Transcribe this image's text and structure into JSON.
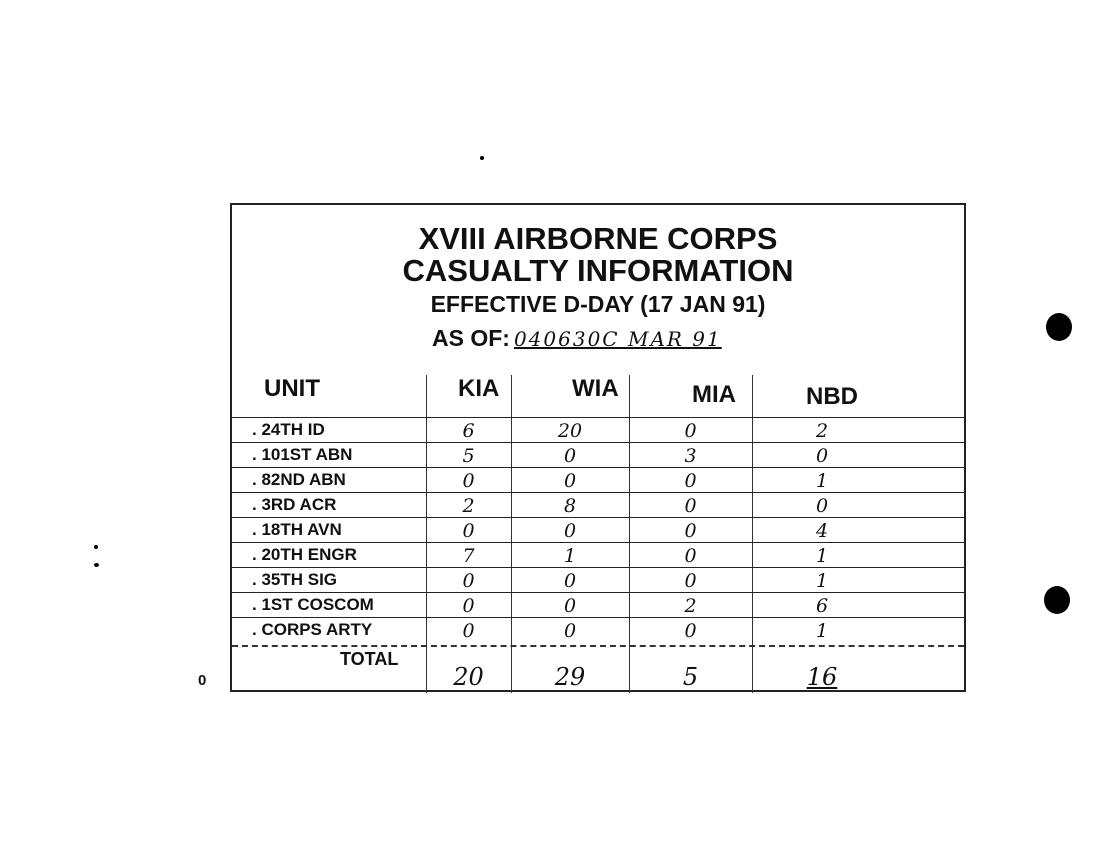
{
  "title_lines": [
    "XVIII AIRBORNE CORPS",
    "CASUALTY INFORMATION",
    "EFFECTIVE D-DAY (17 JAN 91)"
  ],
  "as_of_label": "AS OF:",
  "as_of_value": "040630C MAR 91",
  "columns": [
    "UNIT",
    "KIA",
    "WIA",
    "MIA",
    "NBD"
  ],
  "rows": [
    {
      "unit": ". 24TH ID",
      "kia": "6",
      "wia": "20",
      "mia": "0",
      "nbd": "2"
    },
    {
      "unit": ". 101ST ABN",
      "kia": "5",
      "wia": "0",
      "mia": "3",
      "nbd": "0"
    },
    {
      "unit": ". 82ND ABN",
      "kia": "0",
      "wia": "0",
      "mia": "0",
      "nbd": "1"
    },
    {
      "unit": ". 3RD ACR",
      "kia": "2",
      "wia": "8",
      "mia": "0",
      "nbd": "0"
    },
    {
      "unit": ". 18TH AVN",
      "kia": "0",
      "wia": "0",
      "mia": "0",
      "nbd": "4"
    },
    {
      "unit": ". 20TH ENGR",
      "kia": "7",
      "wia": "1",
      "mia": "0",
      "nbd": "1"
    },
    {
      "unit": ". 35TH SIG",
      "kia": "0",
      "wia": "0",
      "mia": "0",
      "nbd": "1"
    },
    {
      "unit": ". 1ST COSCOM",
      "kia": "0",
      "wia": "0",
      "mia": "2",
      "nbd": "6"
    },
    {
      "unit": ". CORPS ARTY",
      "kia": "0",
      "wia": "0",
      "mia": "0",
      "nbd": "1"
    }
  ],
  "total": {
    "label": "TOTAL",
    "kia": "20",
    "wia": "29",
    "mia": "5",
    "nbd": "16"
  },
  "margin_mark": "0"
}
